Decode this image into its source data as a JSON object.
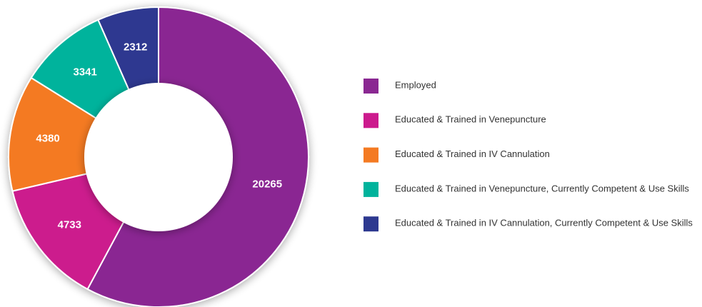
{
  "chart_data": {
    "type": "donut",
    "categories": [
      "Employed",
      "Educated & Trained in Venepuncture",
      "Educated & Trained in IV Cannulation",
      "Educated & Trained in Venepuncture, Currently Competent & Use Skills",
      "Educated & Trained in IV Cannulation, Currently Competent & Use Skills"
    ],
    "values": [
      20265,
      4733,
      4380,
      3341,
      2312
    ],
    "colors": [
      "#8a2892",
      "#cc1a8d",
      "#f47a22",
      "#00b39c",
      "#2d3990"
    ],
    "legend": "right"
  }
}
